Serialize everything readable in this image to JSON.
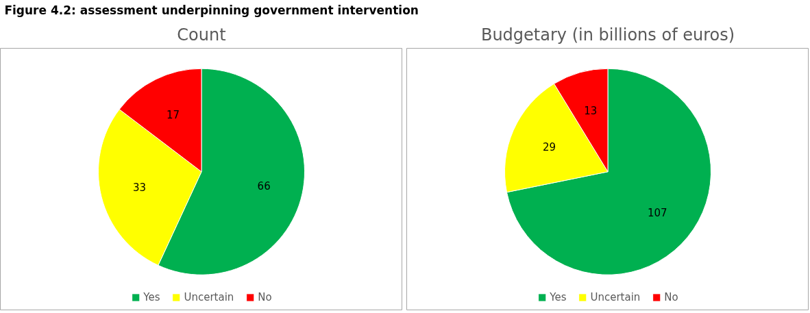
{
  "chart_data": [
    {
      "type": "pie",
      "title": "Count",
      "categories": [
        "Yes",
        "Uncertain",
        "No"
      ],
      "values": [
        66,
        33,
        17
      ],
      "colors": [
        "#00b050",
        "#ffff00",
        "#ff0000"
      ],
      "data_labels": true,
      "legend": "bottom",
      "annotations": [
        "Figure 4.2: assessment underpinning government intervention"
      ]
    },
    {
      "type": "pie",
      "title": "Budgetary (in billions of euros)",
      "categories": [
        "Yes",
        "Uncertain",
        "No"
      ],
      "values": [
        107,
        29,
        13
      ],
      "colors": [
        "#00b050",
        "#ffff00",
        "#ff0000"
      ],
      "data_labels": true,
      "legend": "bottom"
    }
  ]
}
